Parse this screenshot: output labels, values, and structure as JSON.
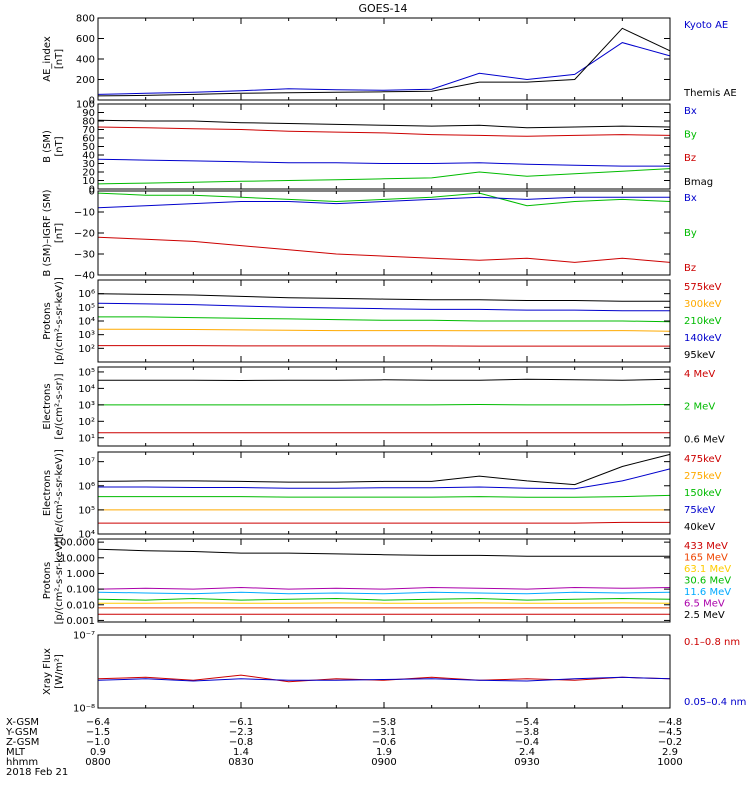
{
  "title": "GOES-14",
  "panels": [
    {
      "id": "ae",
      "ylabel": [
        "AE_index",
        "[nT]"
      ],
      "scale": "linear",
      "ylim": [
        0,
        800
      ],
      "ticks": [
        {
          "v": 0,
          "t": "0"
        },
        {
          "v": 200,
          "t": "200"
        },
        {
          "v": 400,
          "t": "400"
        },
        {
          "v": 600,
          "t": "600"
        },
        {
          "v": 800,
          "t": "800"
        }
      ],
      "legend": [
        {
          "text": "Kyoto AE",
          "color": "#0000cc"
        },
        {
          "text": "Themis AE",
          "color": "#000000"
        }
      ]
    },
    {
      "id": "bsm",
      "ylabel": [
        "B (SM)",
        "[nT]"
      ],
      "scale": "linear",
      "ylim": [
        0,
        100
      ],
      "ticks": [
        {
          "v": 0,
          "t": "0"
        },
        {
          "v": 10,
          "t": "10"
        },
        {
          "v": 20,
          "t": "20"
        },
        {
          "v": 30,
          "t": "30"
        },
        {
          "v": 40,
          "t": "40"
        },
        {
          "v": 50,
          "t": "50"
        },
        {
          "v": 60,
          "t": "60"
        },
        {
          "v": 70,
          "t": "70"
        },
        {
          "v": 80,
          "t": "80"
        },
        {
          "v": 90,
          "t": "90"
        },
        {
          "v": 100,
          "t": "100"
        }
      ],
      "legend": [
        {
          "text": "Bx",
          "color": "#0000cc"
        },
        {
          "text": "By",
          "color": "#00bb00"
        },
        {
          "text": "Bz",
          "color": "#cc0000"
        },
        {
          "text": "Bmag",
          "color": "#000000"
        }
      ]
    },
    {
      "id": "bigrf",
      "ylabel": [
        "B (SM)–IGRF (SM)",
        "[nT]"
      ],
      "scale": "linear",
      "ylim": [
        -40,
        0
      ],
      "ticks": [
        {
          "v": -40,
          "t": "−40"
        },
        {
          "v": -30,
          "t": "−30"
        },
        {
          "v": -20,
          "t": "−20"
        },
        {
          "v": -10,
          "t": "−10"
        },
        {
          "v": 0,
          "t": "0"
        }
      ],
      "legend": [
        {
          "text": "Bx",
          "color": "#0000cc"
        },
        {
          "text": "By",
          "color": "#00bb00"
        },
        {
          "text": "Bz",
          "color": "#cc0000"
        }
      ]
    },
    {
      "id": "protons1",
      "ylabel": [
        "Protons",
        "[p/(cm²-s-sr-keV)]"
      ],
      "scale": "log",
      "ylim": [
        1,
        7
      ],
      "ticks": [
        {
          "v": 2,
          "t": "10²"
        },
        {
          "v": 3,
          "t": "10³"
        },
        {
          "v": 4,
          "t": "10⁴"
        },
        {
          "v": 5,
          "t": "10⁵"
        },
        {
          "v": 6,
          "t": "10⁶"
        }
      ],
      "legend": [
        {
          "text": "575keV",
          "color": "#cc0000"
        },
        {
          "text": "300keV",
          "color": "#ffaa00"
        },
        {
          "text": "210keV",
          "color": "#00bb00"
        },
        {
          "text": "140keV",
          "color": "#0000cc"
        },
        {
          "text": "95keV",
          "color": "#000000"
        }
      ]
    },
    {
      "id": "electrons1",
      "ylabel": [
        "Electrons",
        "[e/(cm²-s-sr)]"
      ],
      "scale": "log",
      "ylim": [
        0.5,
        5.3
      ],
      "ticks": [
        {
          "v": 1,
          "t": "10¹"
        },
        {
          "v": 2,
          "t": "10²"
        },
        {
          "v": 3,
          "t": "10³"
        },
        {
          "v": 4,
          "t": "10⁴"
        },
        {
          "v": 5,
          "t": "10⁵"
        }
      ],
      "legend": [
        {
          "text": "4 MeV",
          "color": "#cc0000"
        },
        {
          "text": "2 MeV",
          "color": "#00bb00"
        },
        {
          "text": "0.6 MeV",
          "color": "#000000"
        }
      ]
    },
    {
      "id": "electrons2",
      "ylabel": [
        "Electrons",
        "[e/(cm²-s-sr-keV)]"
      ],
      "scale": "log",
      "ylim": [
        4,
        7.4
      ],
      "ticks": [
        {
          "v": 4,
          "t": "10⁴"
        },
        {
          "v": 5,
          "t": "10⁵"
        },
        {
          "v": 6,
          "t": "10⁶"
        },
        {
          "v": 7,
          "t": "10⁷"
        }
      ],
      "legend": [
        {
          "text": "475keV",
          "color": "#cc0000"
        },
        {
          "text": "275keV",
          "color": "#ffaa00"
        },
        {
          "text": "150keV",
          "color": "#00bb00"
        },
        {
          "text": "75keV",
          "color": "#0000cc"
        },
        {
          "text": "40keV",
          "color": "#000000"
        }
      ]
    },
    {
      "id": "protons2",
      "ylabel": [
        "Protons",
        "[p/(cm²-s-sr-keV)]"
      ],
      "scale": "log",
      "ylim": [
        -3.1,
        2.2
      ],
      "ticks": [
        {
          "v": -3,
          "t": "0.001"
        },
        {
          "v": -2,
          "t": "0.010"
        },
        {
          "v": -1,
          "t": "0.100"
        },
        {
          "v": 0,
          "t": "1.000"
        },
        {
          "v": 1,
          "t": "10.000"
        },
        {
          "v": 2,
          "t": "100.000"
        }
      ],
      "legend": [
        {
          "text": "433 MeV",
          "color": "#cc0000"
        },
        {
          "text": "165 MeV",
          "color": "#ee4400"
        },
        {
          "text": "63.1 MeV",
          "color": "#ffcc00"
        },
        {
          "text": "30.6 MeV",
          "color": "#00bb00"
        },
        {
          "text": "11.6 MeV",
          "color": "#00aaff"
        },
        {
          "text": "6.5 MeV",
          "color": "#aa00aa"
        },
        {
          "text": "2.5 MeV",
          "color": "#000000"
        }
      ]
    },
    {
      "id": "xray",
      "ylabel": [
        "Xray Flux",
        "[W/m²]"
      ],
      "scale": "log",
      "ylim": [
        -8,
        -7
      ],
      "ticks": [
        {
          "v": -8,
          "t": "10⁻⁸"
        },
        {
          "v": -7,
          "t": "10⁻⁷"
        }
      ],
      "legend": [
        {
          "text": "0.1–0.8 nm",
          "color": "#cc0000"
        },
        {
          "text": "0.05–0.4 nm",
          "color": "#0000cc"
        }
      ]
    }
  ],
  "footer": {
    "rows": [
      {
        "label": "X-GSM",
        "values": [
          "−6.4",
          "−6.1",
          "−5.8",
          "−5.4",
          "−4.8"
        ]
      },
      {
        "label": "Y-GSM",
        "values": [
          "−1.5",
          "−2.3",
          "−3.1",
          "−3.8",
          "−4.5"
        ]
      },
      {
        "label": "Z-GSM",
        "values": [
          "−1.0",
          "−0.8",
          "−0.6",
          "−0.4",
          "−0.2"
        ]
      },
      {
        "label": "MLT",
        "values": [
          "0.9",
          "1.4",
          "1.9",
          "2.4",
          "2.9"
        ]
      },
      {
        "label": "hhmm",
        "values": [
          "0800",
          "0830",
          "0900",
          "0930",
          "1000"
        ]
      }
    ],
    "date": "2018 Feb 21"
  },
  "chart_data": {
    "type": "line",
    "x_unit": "hhmm",
    "x": [
      "0800",
      "0810",
      "0820",
      "0830",
      "0840",
      "0850",
      "0900",
      "0910",
      "0920",
      "0930",
      "0940",
      "0950",
      "1000"
    ],
    "panels": {
      "ae": [
        {
          "name": "Kyoto AE",
          "values": [
            55,
            65,
            75,
            90,
            110,
            100,
            95,
            105,
            260,
            200,
            250,
            560,
            430
          ]
        },
        {
          "name": "Themis AE",
          "values": [
            40,
            45,
            55,
            65,
            70,
            75,
            80,
            85,
            175,
            175,
            200,
            700,
            480
          ]
        }
      ],
      "bsm": [
        {
          "name": "Bmag",
          "values": [
            81,
            80,
            80,
            78,
            77,
            76,
            75,
            74,
            75,
            72,
            73,
            74,
            73
          ]
        },
        {
          "name": "Bz",
          "values": [
            73,
            72,
            71,
            70,
            68,
            67,
            66,
            64,
            63,
            62,
            63,
            64,
            63
          ]
        },
        {
          "name": "Bx",
          "values": [
            35,
            34,
            33,
            32,
            31,
            31,
            30,
            30,
            31,
            29,
            28,
            27,
            27
          ]
        },
        {
          "name": "By",
          "values": [
            6,
            7,
            8,
            9,
            10,
            11,
            12,
            13,
            20,
            15,
            18,
            21,
            24
          ]
        }
      ],
      "bigrf": [
        {
          "name": "By",
          "values": [
            -1,
            -2,
            -2,
            -3,
            -4,
            -5,
            -4,
            -3,
            -1,
            -7,
            -5,
            -4,
            -5
          ]
        },
        {
          "name": "Bx",
          "values": [
            -8,
            -7,
            -6,
            -5,
            -5,
            -6,
            -5,
            -4,
            -3,
            -4,
            -3,
            -3,
            -3
          ]
        },
        {
          "name": "Bz",
          "values": [
            -22,
            -23,
            -24,
            -26,
            -28,
            -30,
            -31,
            -32,
            -33,
            -32,
            -34,
            -32,
            -34
          ]
        }
      ],
      "protons1": [
        {
          "name": "95keV",
          "values": [
            6.0,
            5.95,
            5.9,
            5.8,
            5.7,
            5.65,
            5.6,
            5.55,
            5.55,
            5.5,
            5.5,
            5.45,
            5.45
          ]
        },
        {
          "name": "140keV",
          "values": [
            5.3,
            5.25,
            5.2,
            5.1,
            5.0,
            4.95,
            4.9,
            4.85,
            4.85,
            4.8,
            4.8,
            4.75,
            4.75
          ]
        },
        {
          "name": "210keV",
          "values": [
            4.3,
            4.3,
            4.25,
            4.2,
            4.15,
            4.1,
            4.05,
            4.05,
            4.0,
            4.0,
            4.0,
            4.0,
            3.95
          ]
        },
        {
          "name": "300keV",
          "values": [
            3.4,
            3.4,
            3.38,
            3.35,
            3.33,
            3.3,
            3.3,
            3.3,
            3.28,
            3.28,
            3.28,
            3.3,
            3.25
          ]
        },
        {
          "name": "575keV",
          "values": [
            2.2,
            2.2,
            2.2,
            2.18,
            2.18,
            2.18,
            2.18,
            2.18,
            2.16,
            2.16,
            2.16,
            2.16,
            2.16
          ]
        }
      ],
      "electrons1": [
        {
          "name": "0.6 MeV",
          "values": [
            4.5,
            4.5,
            4.5,
            4.48,
            4.5,
            4.5,
            4.52,
            4.5,
            4.5,
            4.55,
            4.52,
            4.5,
            4.55
          ]
        },
        {
          "name": "2 MeV",
          "values": [
            3.0,
            3.0,
            3.0,
            3.0,
            3.0,
            3.0,
            3.0,
            3.0,
            3.02,
            3.0,
            3.0,
            3.0,
            3.02
          ]
        },
        {
          "name": "4 MeV",
          "values": [
            1.3,
            1.3,
            1.3,
            1.3,
            1.3,
            1.3,
            1.3,
            1.3,
            1.3,
            1.3,
            1.3,
            1.3,
            1.3
          ]
        }
      ],
      "electrons2": [
        {
          "name": "40keV",
          "values": [
            6.18,
            6.2,
            6.2,
            6.18,
            6.15,
            6.15,
            6.18,
            6.18,
            6.4,
            6.2,
            6.05,
            6.8,
            7.3
          ]
        },
        {
          "name": "75keV",
          "values": [
            5.95,
            5.95,
            5.93,
            5.93,
            5.9,
            5.9,
            5.92,
            5.92,
            5.95,
            5.9,
            5.88,
            6.2,
            6.7
          ]
        },
        {
          "name": "150keV",
          "values": [
            5.55,
            5.55,
            5.55,
            5.55,
            5.53,
            5.53,
            5.53,
            5.53,
            5.55,
            5.52,
            5.52,
            5.55,
            5.6
          ]
        },
        {
          "name": "275keV",
          "values": [
            5.0,
            5.0,
            5.0,
            5.0,
            5.0,
            5.0,
            5.0,
            5.0,
            5.0,
            5.0,
            5.0,
            5.0,
            5.0
          ]
        },
        {
          "name": "475keV",
          "values": [
            4.45,
            4.45,
            4.45,
            4.45,
            4.45,
            4.45,
            4.45,
            4.45,
            4.45,
            4.45,
            4.45,
            4.48,
            4.48
          ]
        }
      ],
      "protons2": [
        {
          "name": "2.5 MeV",
          "values": [
            1.55,
            1.45,
            1.4,
            1.3,
            1.3,
            1.25,
            1.2,
            1.15,
            1.15,
            1.1,
            1.1,
            1.1,
            1.1
          ]
        },
        {
          "name": "6.5 MeV",
          "values": [
            -1.0,
            -0.95,
            -1.0,
            -0.9,
            -1.0,
            -0.95,
            -1.0,
            -0.9,
            -0.95,
            -1.0,
            -0.9,
            -0.95,
            -0.9
          ]
        },
        {
          "name": "11.6 MeV",
          "values": [
            -1.2,
            -1.25,
            -1.3,
            -1.2,
            -1.3,
            -1.25,
            -1.3,
            -1.2,
            -1.25,
            -1.3,
            -1.2,
            -1.25,
            -1.2
          ]
        },
        {
          "name": "30.6 MeV",
          "values": [
            -1.65,
            -1.7,
            -1.6,
            -1.7,
            -1.65,
            -1.6,
            -1.7,
            -1.65,
            -1.6,
            -1.7,
            -1.65,
            -1.6,
            -1.65
          ]
        },
        {
          "name": "63.1 MeV",
          "values": [
            -1.9,
            -1.9,
            -1.88,
            -1.9,
            -1.9,
            -1.88,
            -1.9,
            -1.9,
            -1.88,
            -1.9,
            -1.9,
            -1.88,
            -1.9
          ]
        },
        {
          "name": "165 MeV",
          "values": [
            -2.2,
            -2.2,
            -2.2,
            -2.2,
            -2.2,
            -2.2,
            -2.2,
            -2.2,
            -2.2,
            -2.2,
            -2.2,
            -2.2,
            -2.2
          ]
        },
        {
          "name": "433 MeV",
          "values": [
            -2.6,
            -2.6,
            -2.6,
            -2.6,
            -2.6,
            -2.6,
            -2.6,
            -2.6,
            -2.6,
            -2.6,
            -2.6,
            -2.6,
            -2.6
          ]
        }
      ],
      "xray": [
        {
          "name": "0.1–0.8 nm",
          "values": [
            -7.6,
            -7.58,
            -7.62,
            -7.55,
            -7.64,
            -7.6,
            -7.62,
            -7.58,
            -7.62,
            -7.6,
            -7.62,
            -7.58,
            -7.6
          ]
        },
        {
          "name": "0.05–0.4 nm",
          "values": [
            -7.62,
            -7.6,
            -7.63,
            -7.6,
            -7.62,
            -7.62,
            -7.61,
            -7.6,
            -7.62,
            -7.63,
            -7.6,
            -7.58,
            -7.6
          ]
        }
      ]
    }
  }
}
